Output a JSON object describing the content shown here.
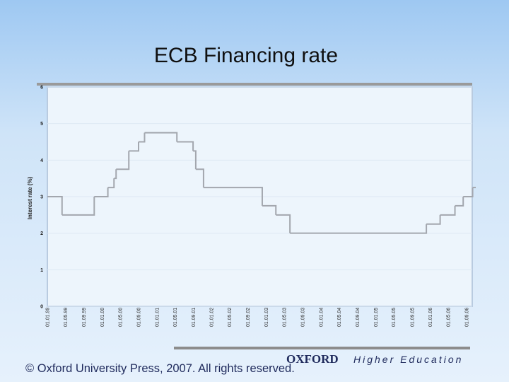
{
  "chart_data": {
    "type": "step",
    "title": "ECB Financing rate",
    "y_label": "Interest rate (%)",
    "x": [
      "01.01.99",
      "09.04.99",
      "10.11.99",
      "09.02.00",
      "21.03.00",
      "04.04.00",
      "28.06.00",
      "01.09.00",
      "11.10.00",
      "15.05.01",
      "31.08.01",
      "18.09.01",
      "09.11.01",
      "06.12.02",
      "07.03.03",
      "09.06.03",
      "06.12.05",
      "08.03.06",
      "15.06.06",
      "09.08.06",
      "11.10.06"
    ],
    "series": [
      {
        "name": "ECB Financing rate",
        "color": "#a3a7ae",
        "values": [
          3,
          2.5,
          3,
          3.25,
          3.5,
          3.75,
          4.25,
          4.5,
          4.75,
          4.5,
          4.25,
          3.75,
          3.25,
          2.75,
          2.5,
          2,
          2.25,
          2.5,
          2.75,
          3,
          3.25
        ]
      }
    ],
    "xlim": [
      "01.01.99",
      "01.11.06"
    ],
    "xticks": [
      "01.01.99",
      "01.05.99",
      "01.09.99",
      "01.01.00",
      "01.05.00",
      "01.09.00",
      "01.01.01",
      "01.05.01",
      "01.09.01",
      "01.01.02",
      "01.05.02",
      "01.09.02",
      "01.01.03",
      "01.05.03",
      "01.09.03",
      "01.01.04",
      "01.05.04",
      "01.09.04",
      "01.01.05",
      "01.05.05",
      "01.09.05",
      "01.01.06",
      "01.05.06",
      "01.09.06"
    ],
    "ylim": [
      0,
      6
    ],
    "yticks": [
      0,
      1,
      2,
      3,
      4,
      5,
      6
    ],
    "grid": true
  },
  "footer": {
    "copyright": "© Oxford University Press, 2007. All rights reserved.",
    "brand": "OXFORD",
    "brand_sub": "Higher Education"
  }
}
